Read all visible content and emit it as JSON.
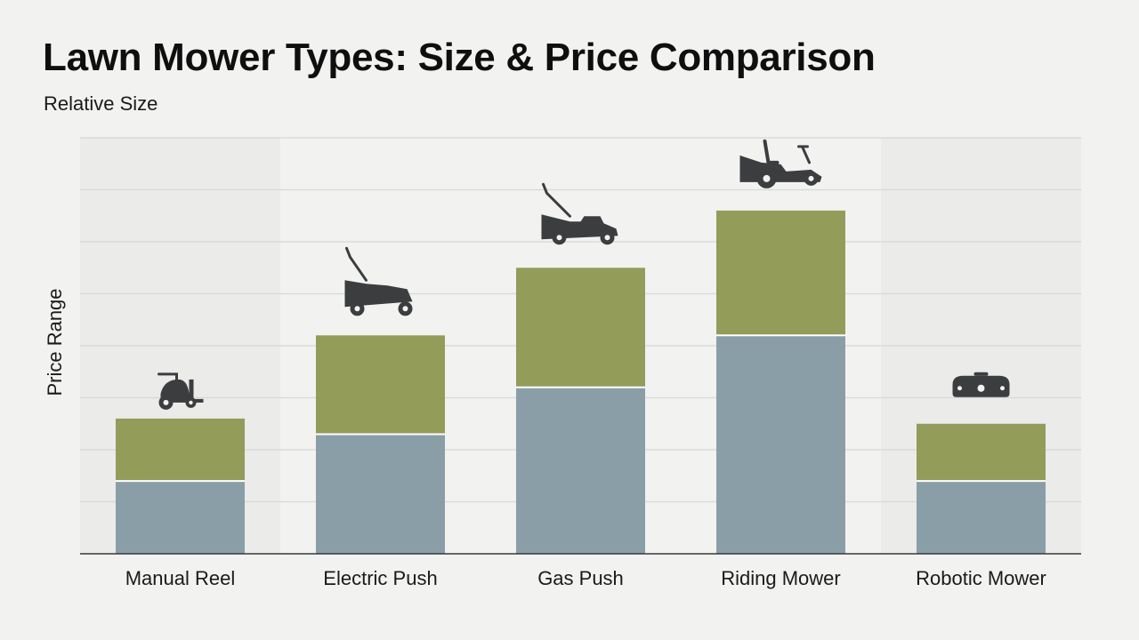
{
  "chart_data": {
    "type": "bar",
    "stacked": true,
    "title": "Lawn Mower Types: Size & Price Comparison",
    "subtitle": "Relative Size",
    "ylabel": "Price Range",
    "xlabel": "",
    "categories": [
      "Manual Reel",
      "Electric Push",
      "Gas Push",
      "Riding Mower",
      "Robotic Mower"
    ],
    "series": [
      {
        "color": "#8a9ea8",
        "values": [
          1.4,
          2.3,
          3.2,
          4.2,
          1.4
        ]
      },
      {
        "color": "#949c5a",
        "values": [
          1.2,
          1.9,
          2.3,
          2.4,
          1.1
        ]
      }
    ],
    "ylim": [
      0,
      8
    ],
    "grid": true,
    "legend": "none",
    "icons": [
      "reel-mower-icon",
      "electric-push-mower-icon",
      "gas-push-mower-icon",
      "riding-mower-icon",
      "robotic-mower-icon"
    ]
  }
}
